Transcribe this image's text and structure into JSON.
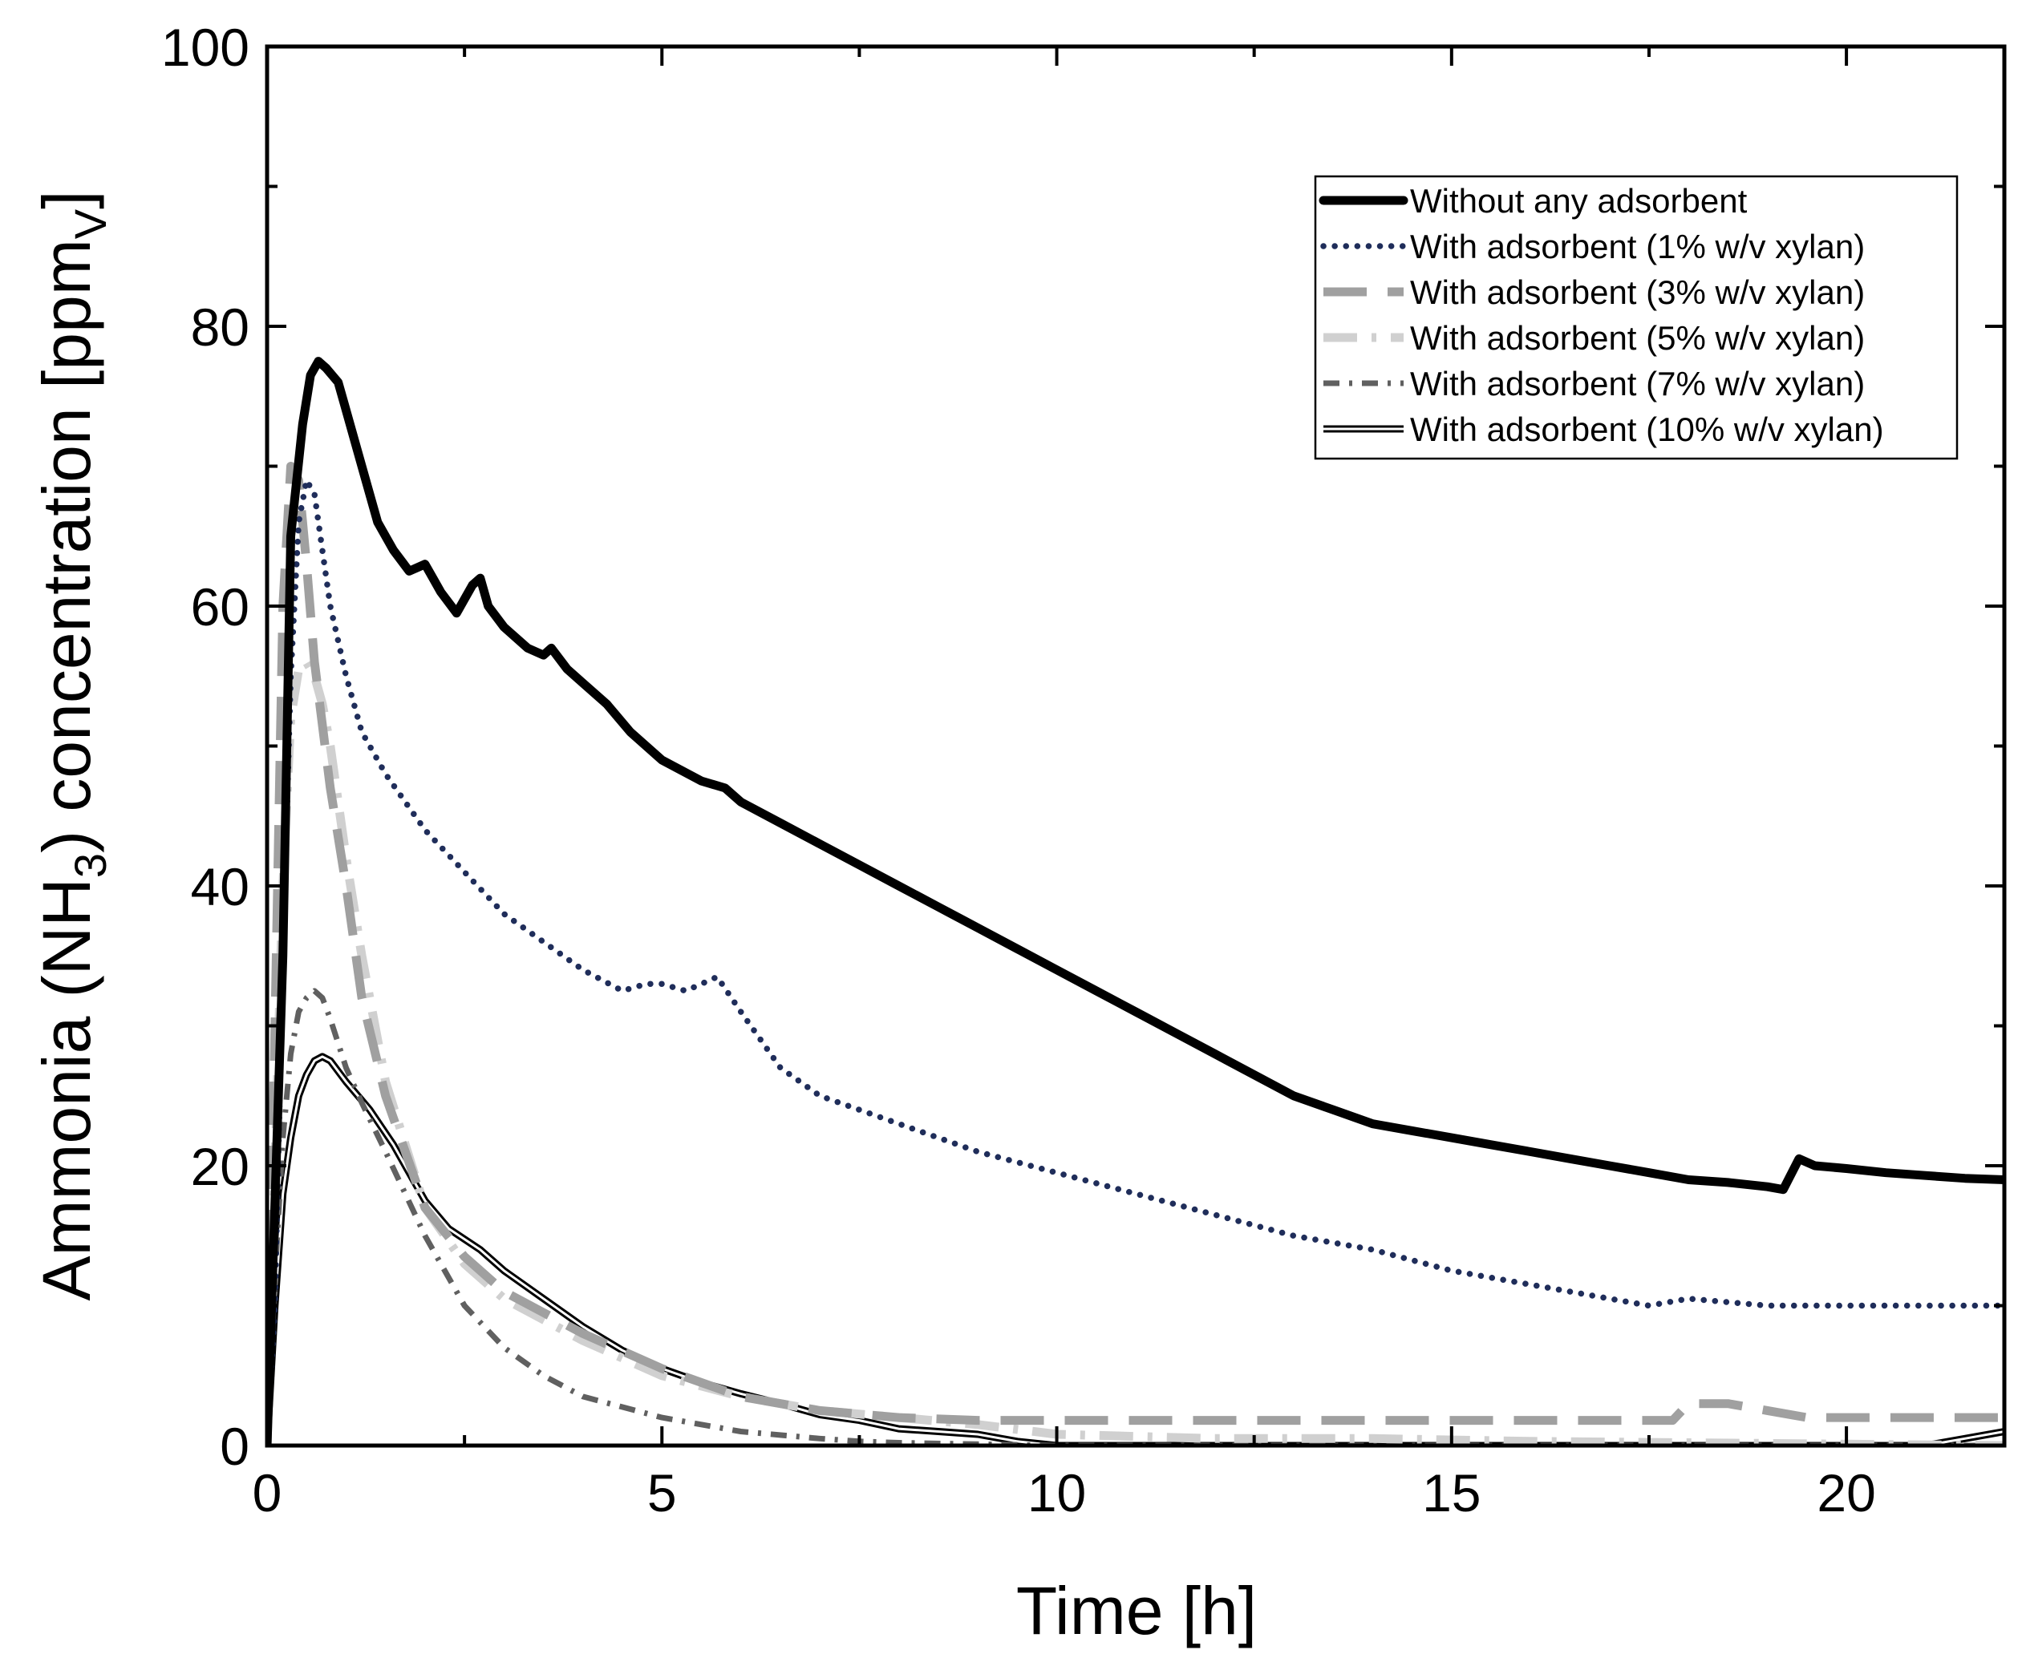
{
  "chart_data": {
    "type": "line",
    "title": "",
    "xlabel": "Time [h]",
    "ylabel": {
      "prefix": "Ammonia (NH",
      "sub1": "3",
      "middle": ") concentration [ppm",
      "sub2": "V",
      "suffix": "]"
    },
    "xlim": [
      0,
      22
    ],
    "ylim": [
      0,
      100
    ],
    "xticks": [
      0,
      5,
      10,
      15,
      20
    ],
    "yticks": [
      0,
      20,
      40,
      60,
      80,
      100
    ],
    "xtick_labels": [
      "0",
      "5",
      "10",
      "15",
      "20"
    ],
    "ytick_labels": [
      "0",
      "20",
      "40",
      "60",
      "80",
      "100"
    ],
    "legend_position": "top-right",
    "series": [
      {
        "name": "Without any adsorbent",
        "color": "#000000",
        "style": "solid-thick",
        "x": [
          0,
          0.2,
          0.3,
          0.45,
          0.55,
          0.65,
          0.75,
          0.9,
          1.0,
          1.2,
          1.4,
          1.6,
          1.8,
          2.0,
          2.1,
          2.2,
          2.4,
          2.5,
          2.6,
          2.7,
          2.8,
          3.0,
          3.3,
          3.5,
          3.6,
          3.8,
          4.0,
          4.3,
          4.6,
          5.0,
          5.5,
          5.8,
          6.0,
          6.5,
          7.0,
          7.5,
          8.0,
          8.5,
          9.0,
          9.5,
          10.0,
          10.5,
          11.0,
          11.5,
          12.0,
          12.5,
          13.0,
          13.5,
          14.0,
          14.5,
          15.0,
          15.5,
          16.0,
          16.5,
          17.0,
          17.5,
          18.0,
          18.5,
          19.0,
          19.2,
          19.4,
          19.6,
          20.0,
          20.5,
          21.0,
          21.5,
          22.0
        ],
        "y": [
          0,
          35,
          65,
          73,
          76.5,
          77.5,
          77,
          76,
          74,
          70,
          66,
          64,
          62.5,
          63,
          62,
          61,
          59.5,
          60.5,
          61.5,
          62,
          60,
          58.5,
          57,
          56.5,
          57,
          55.5,
          54.5,
          53,
          51,
          49,
          47.5,
          47,
          46,
          44.5,
          43,
          41.5,
          40,
          38.5,
          37,
          35.5,
          34,
          32.5,
          31,
          29.5,
          28,
          26.5,
          25,
          24,
          23,
          22.5,
          22,
          21.5,
          21,
          20.5,
          20,
          19.5,
          19,
          18.8,
          18.5,
          18.3,
          20.5,
          20,
          19.8,
          19.5,
          19.3,
          19.1,
          19
        ]
      },
      {
        "name": "With adsorbent (1% w/v xylan)",
        "color": "#1f2d5a",
        "style": "dotted",
        "x": [
          0,
          0.1,
          0.2,
          0.3,
          0.4,
          0.5,
          0.6,
          0.7,
          0.8,
          1.0,
          1.2,
          1.5,
          2.0,
          2.5,
          3.0,
          3.5,
          4.0,
          4.5,
          4.8,
          5.0,
          5.3,
          5.5,
          5.7,
          6.0,
          6.5,
          7.0,
          7.5,
          8.0,
          9.0,
          10.0,
          11.0,
          12.0,
          13.0,
          14.0,
          15.0,
          16.0,
          17.0,
          17.5,
          18.0,
          19.0,
          20.0,
          21.0,
          22.0
        ],
        "y": [
          0,
          10,
          35,
          55,
          66,
          69,
          68,
          64,
          60,
          55,
          51,
          48,
          44,
          41,
          38,
          36,
          34,
          32.5,
          33,
          33,
          32.5,
          33,
          33.5,
          31,
          27,
          25,
          24,
          23,
          21,
          19.5,
          18,
          16.5,
          15,
          14,
          12.5,
          11.5,
          10.5,
          10,
          10.5,
          10,
          10,
          10,
          10
        ]
      },
      {
        "name": "With adsorbent (3% w/v xylan)",
        "color": "#a0a0a0",
        "style": "long-dash",
        "x": [
          0,
          0.1,
          0.2,
          0.3,
          0.4,
          0.5,
          0.6,
          0.8,
          1.0,
          1.2,
          1.5,
          2.0,
          2.5,
          3.0,
          3.5,
          4.0,
          5.0,
          6.0,
          7.0,
          8.0,
          9.0,
          10.0,
          12.0,
          14.0,
          15.0,
          16.0,
          17.0,
          17.8,
          18.0,
          18.5,
          19.0,
          19.5,
          20.0,
          21.0,
          22.0
        ],
        "y": [
          0,
          30,
          60,
          70,
          69,
          63,
          56,
          47,
          40,
          32,
          25,
          17,
          13.5,
          11,
          9.5,
          8,
          5.5,
          3.5,
          2.5,
          2,
          1.8,
          1.8,
          1.8,
          1.8,
          1.8,
          1.8,
          1.8,
          1.8,
          3,
          3,
          2.5,
          2,
          2,
          2,
          2
        ]
      },
      {
        "name": "With adsorbent (5% w/v xylan)",
        "color": "#d0d0d0",
        "style": "dash-dot",
        "x": [
          0,
          0.1,
          0.2,
          0.3,
          0.4,
          0.5,
          0.6,
          0.7,
          0.8,
          1.0,
          1.2,
          1.5,
          2.0,
          2.5,
          3.0,
          3.5,
          4.0,
          5.0,
          6.0,
          7.0,
          8.0,
          9.0,
          10.0,
          12.0,
          14.0,
          16.0,
          18.0,
          20.0,
          22.0
        ],
        "y": [
          0,
          20,
          40,
          52,
          55.5,
          56,
          55,
          53,
          50,
          42,
          35,
          26,
          17,
          13,
          10.5,
          9,
          7.5,
          5,
          3.5,
          2.5,
          2,
          1.5,
          0.8,
          0.5,
          0.5,
          0.3,
          0.2,
          0.1,
          0
        ]
      },
      {
        "name": "With adsorbent (7% w/v xylan)",
        "color": "#606060",
        "style": "dash-dot-small",
        "x": [
          0,
          0.1,
          0.2,
          0.3,
          0.4,
          0.5,
          0.6,
          0.7,
          0.8,
          1.0,
          1.2,
          1.5,
          2.0,
          2.5,
          3.0,
          3.5,
          4.0,
          5.0,
          6.0,
          7.0,
          7.5,
          8.0,
          9.0,
          10.0,
          12.0,
          22.0
        ],
        "y": [
          0,
          12,
          22,
          28,
          31,
          32,
          32.5,
          32,
          30.5,
          27,
          24.5,
          21,
          15,
          10,
          7,
          5,
          3.5,
          2,
          1,
          0.5,
          0.3,
          0.2,
          0.1,
          0,
          0,
          0
        ]
      },
      {
        "name": "With adsorbent (10% w/v xylan)",
        "color": "#000000",
        "style": "double",
        "x": [
          0,
          0.1,
          0.2,
          0.3,
          0.4,
          0.5,
          0.6,
          0.7,
          0.8,
          1.0,
          1.3,
          1.6,
          2.0,
          2.3,
          2.7,
          3.0,
          3.5,
          4.0,
          4.5,
          5.0,
          5.5,
          6.0,
          6.5,
          7.0,
          7.5,
          8.0,
          8.5,
          9.0,
          9.5,
          10.0,
          12.0,
          14.0,
          16.0,
          18.0,
          20.0,
          21.0,
          21.5,
          22.0
        ],
        "y": [
          0,
          10,
          18,
          22,
          25,
          26.5,
          27.5,
          27.8,
          27.5,
          26,
          24,
          21.5,
          17.5,
          15.5,
          14,
          12.5,
          10.5,
          8.5,
          6.8,
          5.5,
          4.5,
          3.7,
          3,
          2.2,
          1.8,
          1.2,
          1,
          0.8,
          0.3,
          0,
          0,
          0,
          0,
          0,
          0,
          0,
          0.5,
          1
        ]
      }
    ]
  }
}
